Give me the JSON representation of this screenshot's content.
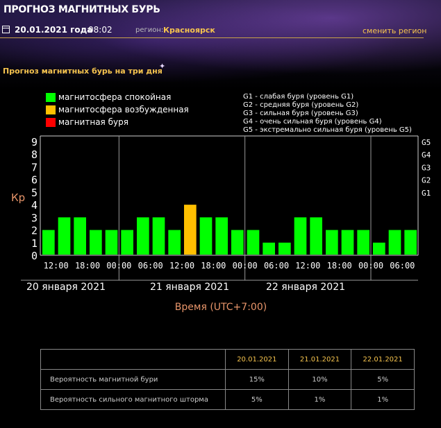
{
  "header": {
    "title": "ПРОГНОЗ МАГНИТНЫХ БУРЬ",
    "date": "20.01.2021 года",
    "time": "08:02",
    "region_label": "регион:",
    "region_name": "Красноярск",
    "change_region": "сменить регион"
  },
  "section_title": "Прогноз магнитных бурь на три дня",
  "legend": [
    {
      "label": "магнитосфера спокойная",
      "color": "#00ff00"
    },
    {
      "label": "магнитосфера возбужденная",
      "color": "#ffc000"
    },
    {
      "label": "магнитная буря",
      "color": "#ff0000"
    }
  ],
  "g_levels": [
    "G1 - слабая буря (уровень G1)",
    "G2 - средняя буря (уровень G2)",
    "G3 - сильная буря (уровень G3)",
    "G4 - очень сильная буря (уровень G4)",
    "G5 - экстремально сильная буря (уровень G5)"
  ],
  "chart_data": {
    "type": "bar",
    "ylabel": "Кр",
    "xlabel": "Время (UTC+7:00)",
    "ylim": [
      0,
      9
    ],
    "y_ticks": [
      "0",
      "1",
      "2",
      "3",
      "4",
      "5",
      "6",
      "7",
      "8",
      "9"
    ],
    "right_ticks": [
      {
        "value": 5,
        "label": "G1"
      },
      {
        "value": 6,
        "label": "G2"
      },
      {
        "value": 7,
        "label": "G3"
      },
      {
        "value": 8,
        "label": "G4"
      },
      {
        "value": 9,
        "label": "G5"
      }
    ],
    "x_ticks": [
      "12:00",
      "18:00",
      "00:00",
      "06:00",
      "12:00",
      "18:00",
      "00:00",
      "06:00",
      "12:00",
      "18:00",
      "00:00",
      "06:00"
    ],
    "days": [
      "20 января 2021",
      "21 января 2021",
      "22 января 2021"
    ],
    "values": [
      2,
      3,
      3,
      2,
      2,
      2,
      3,
      3,
      2,
      4,
      3,
      3,
      2,
      2,
      1,
      1,
      3,
      3,
      2,
      2,
      2,
      1,
      2,
      2
    ],
    "levels": [
      "quiet",
      "quiet",
      "quiet",
      "quiet",
      "quiet",
      "quiet",
      "quiet",
      "quiet",
      "quiet",
      "active",
      "quiet",
      "quiet",
      "quiet",
      "quiet",
      "quiet",
      "quiet",
      "quiet",
      "quiet",
      "quiet",
      "quiet",
      "quiet",
      "quiet",
      "quiet",
      "quiet"
    ],
    "colors": {
      "quiet": "#00ff00",
      "active": "#ffc000",
      "storm": "#ff0000"
    },
    "grid": "vertical day separators"
  },
  "table": {
    "headers": [
      "",
      "20.01.2021",
      "21.01.2021",
      "22.01.2021"
    ],
    "rows": [
      {
        "label": "Вероятность магнитной бури",
        "values": [
          "15%",
          "10%",
          "5%"
        ]
      },
      {
        "label": "Вероятность сильного магнитного шторма",
        "values": [
          "5%",
          "1%",
          "1%"
        ]
      }
    ]
  }
}
